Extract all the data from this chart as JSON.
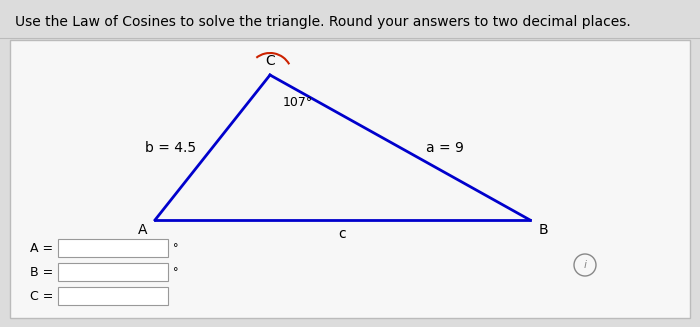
{
  "title": "Use the Law of Cosines to solve the triangle. Round your answers to two decimal places.",
  "title_fontsize": 10,
  "bg_color": "#dcdcdc",
  "panel_color": "#f0f0f0",
  "triangle_color": "#0000cc",
  "triangle_linewidth": 2.0,
  "angle_C_label": "107°",
  "side_b_label": "b = 4.5",
  "side_a_label": "a = 9",
  "arc_color": "#cc2200",
  "vertex_fontsize": 10,
  "side_fontsize": 10,
  "info_circle_color": "#888888"
}
